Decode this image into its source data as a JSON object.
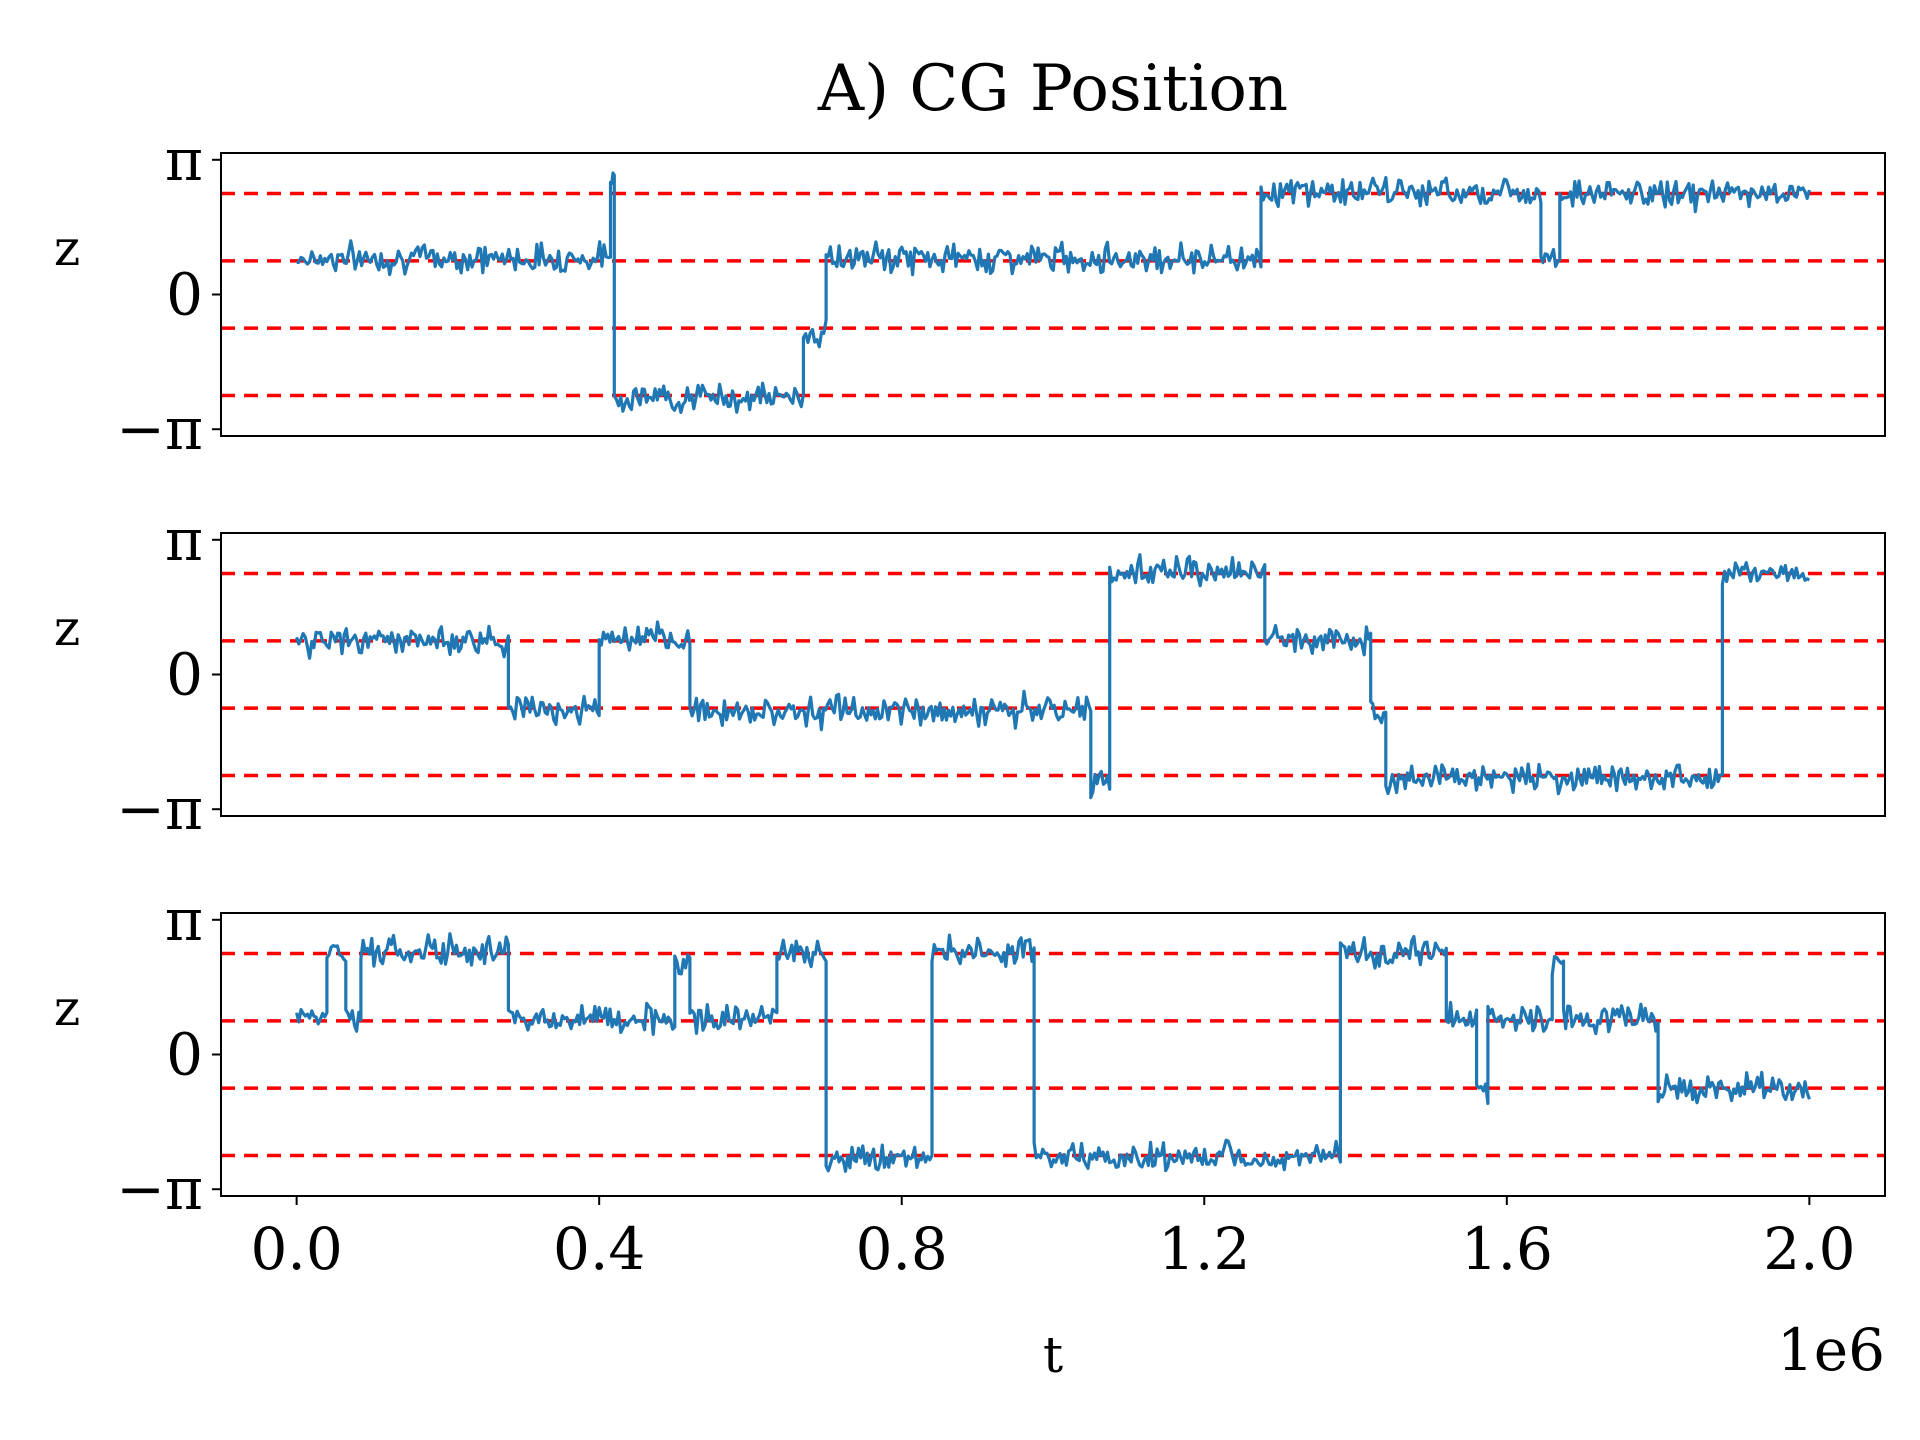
{
  "chart_data": [
    {
      "type": "line",
      "title": "A) CG Position",
      "xlabel": "",
      "ylabel": "z",
      "xlim": [
        -0.1,
        2.1
      ],
      "ylim": [
        -3.3,
        3.3
      ],
      "yticks": [
        -3.14159,
        0,
        3.14159
      ],
      "ytick_labels": [
        "−π",
        "0",
        "π"
      ],
      "xticks": [],
      "xtick_labels": [],
      "reference_lines": [
        2.356,
        0.785,
        -0.785,
        -2.356
      ],
      "reference_color": "#ff0000",
      "series": [
        {
          "name": "z",
          "color": "#1f77b4",
          "segments": [
            {
              "t0": 0.0,
              "t1": 0.415,
              "z": 0.85
            },
            {
              "t0": 0.415,
              "t1": 0.42,
              "z": 2.8
            },
            {
              "t0": 0.42,
              "t1": 0.67,
              "z": -2.4
            },
            {
              "t0": 0.67,
              "t1": 0.7,
              "z": -0.9
            },
            {
              "t0": 0.7,
              "t1": 1.275,
              "z": 0.85
            },
            {
              "t0": 1.275,
              "t1": 1.645,
              "z": 2.4
            },
            {
              "t0": 1.645,
              "t1": 1.67,
              "z": 0.9
            },
            {
              "t0": 1.67,
              "t1": 2.0,
              "z": 2.35
            }
          ]
        }
      ]
    },
    {
      "type": "line",
      "title": "",
      "xlabel": "",
      "ylabel": "z",
      "xlim": [
        -0.1,
        2.1
      ],
      "ylim": [
        -3.3,
        3.3
      ],
      "yticks": [
        -3.14159,
        0,
        3.14159
      ],
      "ytick_labels": [
        "−π",
        "0",
        "π"
      ],
      "xticks": [],
      "xtick_labels": [],
      "reference_lines": [
        2.356,
        0.785,
        -0.785,
        -2.356
      ],
      "reference_color": "#ff0000",
      "series": [
        {
          "name": "z",
          "color": "#1f77b4",
          "segments": [
            {
              "t0": 0.0,
              "t1": 0.28,
              "z": 0.8
            },
            {
              "t0": 0.28,
              "t1": 0.4,
              "z": -0.8
            },
            {
              "t0": 0.4,
              "t1": 0.52,
              "z": 0.8
            },
            {
              "t0": 0.52,
              "t1": 1.05,
              "z": -0.85
            },
            {
              "t0": 1.05,
              "t1": 1.075,
              "z": -2.5
            },
            {
              "t0": 1.075,
              "t1": 1.28,
              "z": 2.4
            },
            {
              "t0": 1.28,
              "t1": 1.42,
              "z": 0.8
            },
            {
              "t0": 1.42,
              "t1": 1.44,
              "z": -0.8
            },
            {
              "t0": 1.44,
              "t1": 1.885,
              "z": -2.4
            },
            {
              "t0": 1.885,
              "t1": 2.0,
              "z": 2.4
            }
          ]
        }
      ]
    },
    {
      "type": "line",
      "title": "",
      "xlabel": "t",
      "ylabel": "z",
      "xlim": [
        -0.1,
        2.1
      ],
      "ylim": [
        -3.3,
        3.3
      ],
      "yticks": [
        -3.14159,
        0,
        3.14159
      ],
      "ytick_labels": [
        "−π",
        "0",
        "π"
      ],
      "xticks": [
        0.0,
        0.4,
        0.8,
        1.2,
        1.6,
        2.0
      ],
      "xtick_labels": [
        "0.0",
        "0.4",
        "0.8",
        "1.2",
        "1.6",
        "2.0"
      ],
      "x_offset_label": "1e6",
      "reference_lines": [
        2.356,
        0.785,
        -0.785,
        -2.356
      ],
      "reference_color": "#ff0000",
      "series": [
        {
          "name": "z",
          "color": "#1f77b4",
          "segments": [
            {
              "t0": 0.0,
              "t1": 0.04,
              "z": 0.85
            },
            {
              "t0": 0.04,
              "t1": 0.065,
              "z": 2.4
            },
            {
              "t0": 0.065,
              "t1": 0.085,
              "z": 0.9
            },
            {
              "t0": 0.085,
              "t1": 0.28,
              "z": 2.4
            },
            {
              "t0": 0.28,
              "t1": 0.5,
              "z": 0.85
            },
            {
              "t0": 0.5,
              "t1": 0.52,
              "z": 2.1
            },
            {
              "t0": 0.52,
              "t1": 0.635,
              "z": 0.85
            },
            {
              "t0": 0.635,
              "t1": 0.7,
              "z": 2.4
            },
            {
              "t0": 0.7,
              "t1": 0.84,
              "z": -2.4
            },
            {
              "t0": 0.84,
              "t1": 0.975,
              "z": 2.4
            },
            {
              "t0": 0.975,
              "t1": 1.38,
              "z": -2.4
            },
            {
              "t0": 1.38,
              "t1": 1.52,
              "z": 2.4
            },
            {
              "t0": 1.52,
              "t1": 1.56,
              "z": 0.85
            },
            {
              "t0": 1.56,
              "t1": 1.575,
              "z": -0.8
            },
            {
              "t0": 1.575,
              "t1": 1.66,
              "z": 0.85
            },
            {
              "t0": 1.66,
              "t1": 1.675,
              "z": 2.2
            },
            {
              "t0": 1.675,
              "t1": 1.8,
              "z": 0.85
            },
            {
              "t0": 1.8,
              "t1": 2.0,
              "z": -0.8
            }
          ]
        }
      ]
    }
  ]
}
